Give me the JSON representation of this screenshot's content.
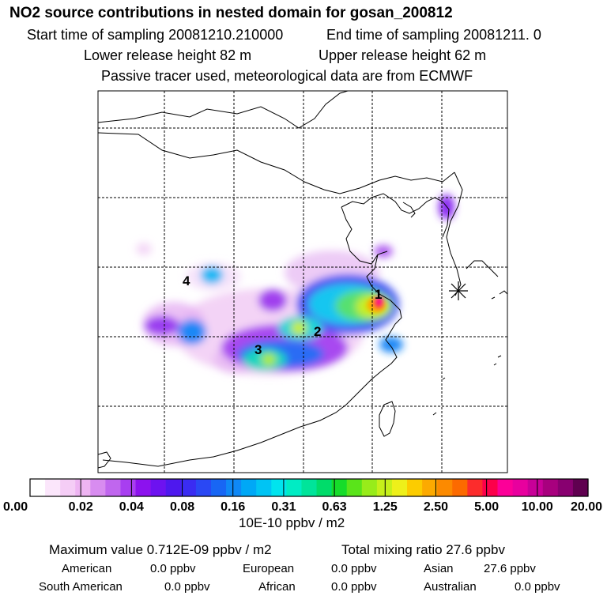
{
  "header": {
    "title": "NO2 source contributions in nested domain for gosan_200812",
    "start_time": "Start time of sampling 20081210.210000",
    "end_time": "End time of sampling 20081211.     0",
    "lower_release": "Lower release height   82 m",
    "upper_release": "Upper release height   62 m",
    "note": "Passive tracer used, meteorological data are from ECMWF"
  },
  "map": {
    "region_labels": [
      "1",
      "2",
      "3",
      "4"
    ],
    "receptor_marker": "receptor-star-icon"
  },
  "colorbar": {
    "colors": [
      "#ffffff",
      "#fbe6fb",
      "#f5cdf6",
      "#eeb4f2",
      "#d88cf0",
      "#c066ee",
      "#a83ef0",
      "#8c12ee",
      "#6d12f0",
      "#4e18ee",
      "#3a2cf2",
      "#2a48f4",
      "#1866f4",
      "#0f88f6",
      "#00a8f6",
      "#00c4f4",
      "#00e4ee",
      "#00ecc4",
      "#00e49a",
      "#00dc6a",
      "#16dc2a",
      "#5ae41a",
      "#98ec1a",
      "#c6f01a",
      "#eef01a",
      "#fccc00",
      "#fcaa00",
      "#fc8a00",
      "#fc6a00",
      "#fc2c2c",
      "#fc004a",
      "#fc0098",
      "#e8009e",
      "#c80098",
      "#a8007e",
      "#880070",
      "#600050"
    ],
    "tick_labels": [
      "0.00",
      "0.02",
      "0.04",
      "0.08",
      "0.16",
      "0.31",
      "0.63",
      "1.25",
      "2.50",
      "5.00",
      "10.00",
      "20.00"
    ],
    "units": "10E-10 ppbv / m2"
  },
  "summary": {
    "max_value": "Maximum value  0.712E-09 ppbv / m2",
    "total_mixing": "Total mixing ratio       27.6 ppbv",
    "contributions": [
      {
        "label": "American",
        "value": "0.0 ppbv"
      },
      {
        "label": "European",
        "value": "0.0 ppbv"
      },
      {
        "label": "Asian",
        "value": "27.6 ppbv"
      },
      {
        "label": "South American",
        "value": "0.0 ppbv"
      },
      {
        "label": "African",
        "value": "0.0 ppbv"
      },
      {
        "label": "Australian",
        "value": "0.0 ppbv"
      }
    ]
  }
}
